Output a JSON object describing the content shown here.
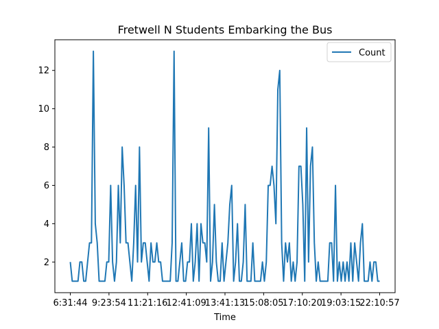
{
  "chart_data": {
    "type": "line",
    "title": "Fretwell N Students Embarking the Bus",
    "xlabel": "Time",
    "ylabel": "",
    "x_tick_labels": [
      "6:31:44",
      "9:23:54",
      "11:21:16",
      "12:41:09",
      "13:41:13",
      "15:08:05",
      "17:10:20",
      "19:03:15",
      "22:10:57"
    ],
    "y_ticks": [
      2,
      4,
      6,
      8,
      10,
      12
    ],
    "ylim": [
      0.4,
      13.6
    ],
    "legend": "top-right",
    "grid": false,
    "series": [
      {
        "name": "Count",
        "color": "#1f77b4",
        "values": [
          2,
          1,
          1,
          1,
          1,
          2,
          2,
          1,
          1,
          2,
          3,
          3,
          13,
          4,
          3,
          1,
          1,
          1,
          1,
          2,
          2,
          6,
          2,
          1,
          2,
          6,
          3,
          8,
          6,
          3,
          3,
          2,
          1,
          3,
          6,
          2,
          8,
          2,
          3,
          3,
          2,
          1,
          3,
          2,
          2,
          3,
          2,
          2,
          1,
          1,
          1,
          1,
          1,
          3,
          13,
          1,
          1,
          2,
          3,
          1,
          1,
          2,
          2,
          4,
          1,
          2,
          4,
          1,
          4,
          3,
          3,
          2,
          9,
          1,
          2,
          5,
          2,
          1,
          1,
          3,
          1,
          2,
          3,
          5,
          6,
          1,
          2,
          4,
          1,
          1,
          2,
          5,
          1,
          1,
          1,
          3,
          1,
          1,
          1,
          1,
          2,
          1,
          2,
          6,
          6,
          7,
          6,
          4,
          11,
          12,
          3,
          1,
          3,
          2,
          3,
          1,
          2,
          1,
          2,
          7,
          7,
          5,
          1,
          9,
          2,
          7,
          8,
          3,
          1,
          2,
          1,
          1,
          1,
          1,
          1,
          3,
          3,
          1,
          6,
          1,
          2,
          1,
          2,
          1,
          2,
          1,
          3,
          1,
          3,
          2,
          1,
          3,
          4,
          1,
          1,
          1,
          2,
          1,
          2,
          2,
          1,
          1
        ]
      }
    ]
  }
}
